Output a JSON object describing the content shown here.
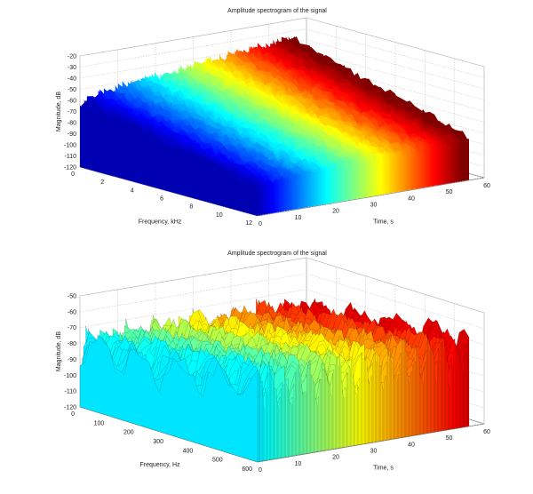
{
  "figure": {
    "background": "#ffffff"
  },
  "chart_data": [
    {
      "type": "surface",
      "title": "Amplitude spectrogram of the signal",
      "xlabel": "Frequency, kHz",
      "ylabel": "Time, s",
      "zlabel": "Magnitude, dB",
      "x_ticks": [
        "0",
        "2",
        "4",
        "6",
        "8",
        "10",
        "12"
      ],
      "y_ticks": [
        "0",
        "10",
        "20",
        "30",
        "40",
        "50",
        "60"
      ],
      "z_ticks": [
        "-120",
        "-110",
        "-100",
        "-90",
        "-80",
        "-70",
        "-60",
        "-50",
        "-40",
        "-30",
        "-20"
      ],
      "xlim": [
        0,
        12
      ],
      "ylim": [
        0,
        60
      ],
      "zlim": [
        -120,
        -20
      ],
      "grid": true,
      "colormap": "jet",
      "segments": [
        {
          "t_start": 0,
          "t_end": 20,
          "peak_db": -48,
          "floor_db": -118
        },
        {
          "t_start": 20,
          "t_end": 56,
          "peak_db": -36,
          "floor_db": -115
        }
      ]
    },
    {
      "type": "surface",
      "title": "Amplitude spectrogram of the signal",
      "xlabel": "Frequency, Hz",
      "ylabel": "Time, s",
      "zlabel": "Magnitude, dB",
      "x_ticks": [
        "0",
        "100",
        "200",
        "300",
        "400",
        "500",
        "600"
      ],
      "y_ticks": [
        "0",
        "10",
        "20",
        "30",
        "40",
        "50",
        "60"
      ],
      "z_ticks": [
        "-120",
        "-110",
        "-100",
        "-90",
        "-80",
        "-70",
        "-60",
        "-50"
      ],
      "xlim": [
        0,
        600
      ],
      "ylim": [
        0,
        60
      ],
      "zlim": [
        -120,
        -50
      ],
      "grid": true,
      "colormap": "jet",
      "segments": [
        {
          "t_start": 0,
          "t_end": 56,
          "peak_db": -60,
          "floor_db": -118
        }
      ]
    }
  ]
}
